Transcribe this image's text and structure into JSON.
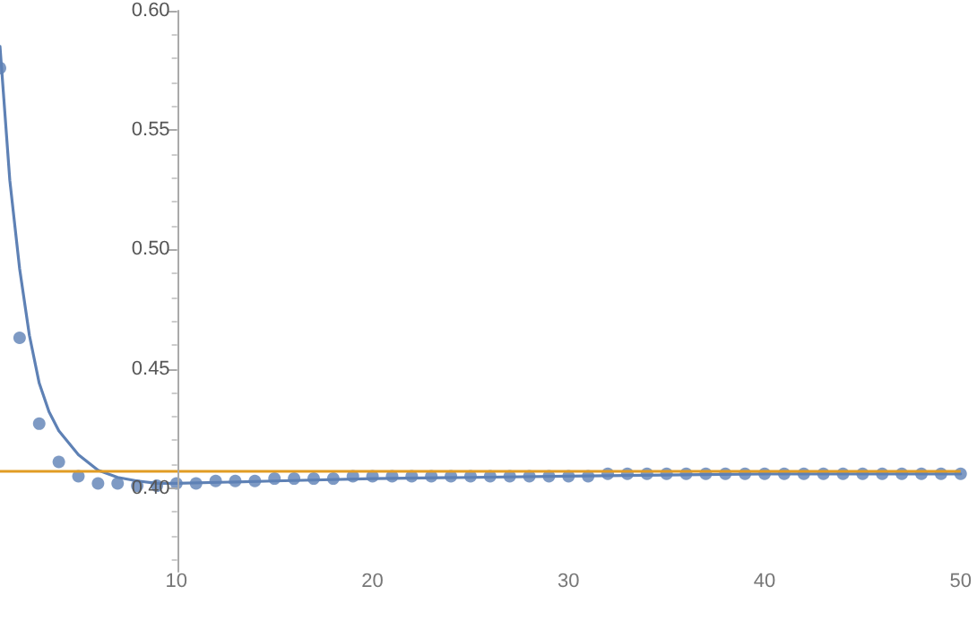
{
  "chart_data": {
    "type": "scatter",
    "marker": "circle",
    "grid": false,
    "xlim": [
      1,
      50
    ],
    "xticks": [
      10,
      20,
      30,
      40,
      50
    ],
    "ylim": [
      0.365,
      0.6
    ],
    "yticks": [
      {
        "value": 0.4,
        "label": "0.40"
      },
      {
        "value": 0.45,
        "label": "0.45"
      },
      {
        "value": 0.5,
        "label": "0.50"
      },
      {
        "value": 0.55,
        "label": "0.55"
      },
      {
        "value": 0.6,
        "label": "0.60"
      }
    ],
    "series": [
      {
        "color": "#5e81b5",
        "x": [
          1,
          2,
          3,
          4,
          5,
          6,
          7,
          8,
          9,
          10,
          11,
          12,
          13,
          14,
          15,
          16,
          17,
          18,
          19,
          20,
          21,
          22,
          23,
          24,
          25,
          26,
          27,
          28,
          29,
          30,
          31,
          32,
          33,
          34,
          35,
          36,
          37,
          38,
          39,
          40,
          41,
          42,
          43,
          44,
          45,
          46,
          47,
          48,
          49,
          50
        ],
        "values": [
          0.576,
          0.463,
          0.427,
          0.411,
          0.405,
          0.402,
          0.402,
          0.401,
          0.401,
          0.402,
          0.402,
          0.403,
          0.403,
          0.403,
          0.404,
          0.404,
          0.404,
          0.404,
          0.405,
          0.405,
          0.405,
          0.405,
          0.405,
          0.405,
          0.405,
          0.405,
          0.405,
          0.405,
          0.405,
          0.405,
          0.405,
          0.406,
          0.406,
          0.406,
          0.406,
          0.406,
          0.406,
          0.406,
          0.406,
          0.406,
          0.406,
          0.406,
          0.406,
          0.406,
          0.406,
          0.406,
          0.406,
          0.406,
          0.406,
          0.406
        ]
      },
      {
        "type": "line",
        "marker": "none",
        "color": "#5e81b5",
        "x": [
          1,
          1.5,
          2,
          2.5,
          3,
          3.5,
          4,
          5,
          6,
          7,
          8,
          9,
          10,
          15,
          20,
          30,
          40,
          50
        ],
        "values": [
          0.585,
          0.529,
          0.492,
          0.464,
          0.444,
          0.432,
          0.424,
          0.414,
          0.4075,
          0.4045,
          0.403,
          0.402,
          0.402,
          0.403,
          0.404,
          0.405,
          0.406,
          0.406
        ]
      }
    ],
    "ref_lines": [
      {
        "axis": "y",
        "value": 0.4075,
        "color": "#e19c24"
      }
    ]
  }
}
